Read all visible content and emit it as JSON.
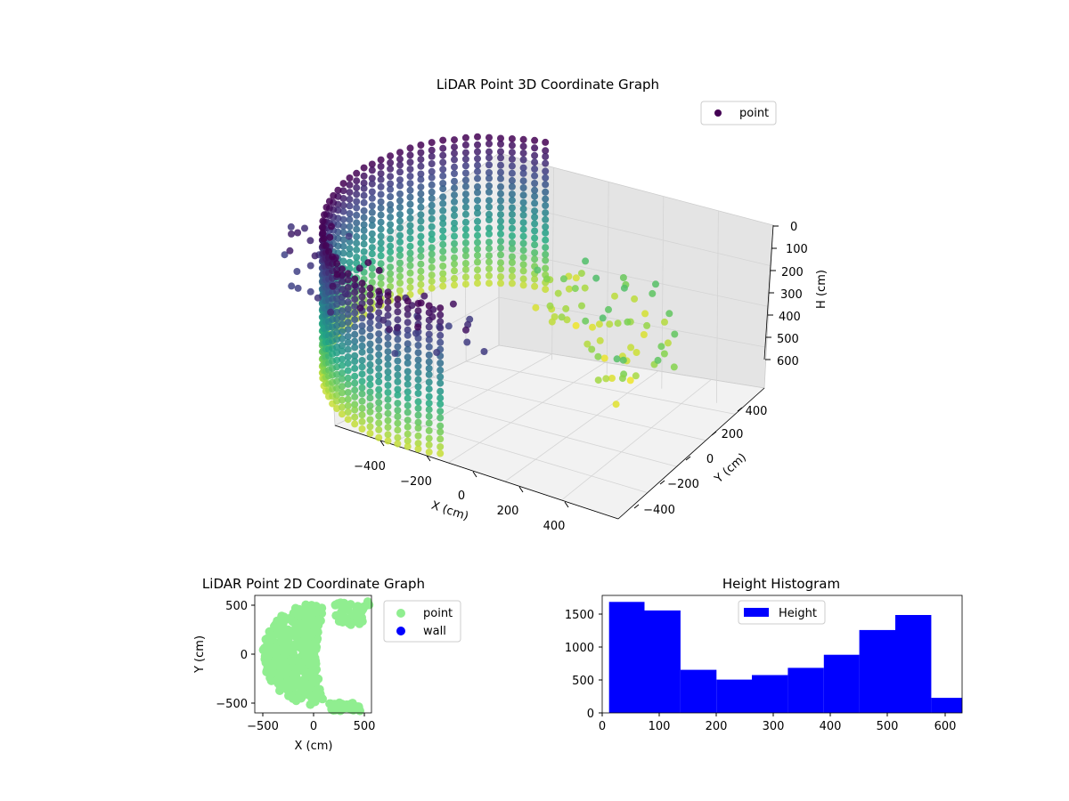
{
  "chart_data": [
    {
      "type": "scatter3d",
      "title": "LiDAR Point 3D Coordinate Graph",
      "xlabel": "X (cm)",
      "ylabel": "Y (cm)",
      "zlabel": "H (cm)",
      "xticks": [
        "−400",
        "−200",
        "0",
        "200",
        "400"
      ],
      "yticks": [
        "400",
        "200",
        "0",
        "−200",
        "−400"
      ],
      "zticks": [
        "0",
        "100",
        "200",
        "300",
        "400",
        "500",
        "600"
      ],
      "zlim": [
        0,
        600
      ],
      "colormap": "viridis",
      "grid": true,
      "legend": {
        "entries": [
          "point"
        ],
        "position": "upper-right",
        "marker_color": "#440154"
      },
      "series": [
        {
          "name": "point",
          "shape": "half-cylinder wall of points",
          "radius_cm": 450,
          "height_range_cm": [
            0,
            600
          ]
        }
      ]
    },
    {
      "type": "scatter",
      "title": "LiDAR Point 2D Coordinate Graph",
      "xlabel": "X (cm)",
      "ylabel": "Y (cm)",
      "xlim": [
        -560,
        560
      ],
      "ylim": [
        -580,
        580
      ],
      "xticks": [
        "−500",
        "0",
        "500"
      ],
      "yticks": [
        "500",
        "0",
        "−500"
      ],
      "legend": {
        "position": "outside-right",
        "entries": [
          {
            "label": "point",
            "color": "#90ee90"
          },
          {
            "label": "wall",
            "color": "#0000ff"
          }
        ]
      },
      "series": [
        {
          "name": "point",
          "color": "#90ee90",
          "shape": "filled half-disc, left side",
          "x_range": [
            -500,
            560
          ],
          "y_range": [
            -560,
            540
          ]
        },
        {
          "name": "wall",
          "color": "#0000ff",
          "values": []
        }
      ]
    },
    {
      "type": "bar",
      "title": "Height Histogram",
      "xlabel": "",
      "ylabel": "",
      "xlim": [
        0,
        630
      ],
      "ylim": [
        0,
        1800
      ],
      "xticks": [
        "0",
        "100",
        "200",
        "300",
        "400",
        "500",
        "600"
      ],
      "yticks": [
        "0",
        "500",
        "1000",
        "1500"
      ],
      "bar_color": "#0000ff",
      "legend": {
        "entries": [
          "Height"
        ],
        "position": "upper-center"
      },
      "bins": [
        {
          "from": 12,
          "to": 74,
          "count": 1700
        },
        {
          "from": 74,
          "to": 137,
          "count": 1570
        },
        {
          "from": 137,
          "to": 200,
          "count": 660
        },
        {
          "from": 200,
          "to": 262,
          "count": 510
        },
        {
          "from": 262,
          "to": 325,
          "count": 580
        },
        {
          "from": 325,
          "to": 388,
          "count": 690
        },
        {
          "from": 388,
          "to": 450,
          "count": 890
        },
        {
          "from": 450,
          "to": 513,
          "count": 1270
        },
        {
          "from": 513,
          "to": 576,
          "count": 1500
        },
        {
          "from": 576,
          "to": 640,
          "count": 230
        }
      ]
    }
  ]
}
